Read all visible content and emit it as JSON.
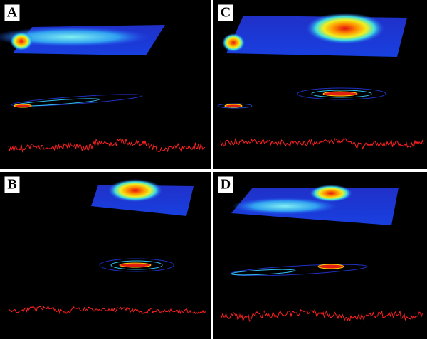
{
  "panels": [
    {
      "label": "A"
    },
    {
      "label": "C"
    },
    {
      "label": "B"
    },
    {
      "label": "D"
    }
  ]
}
